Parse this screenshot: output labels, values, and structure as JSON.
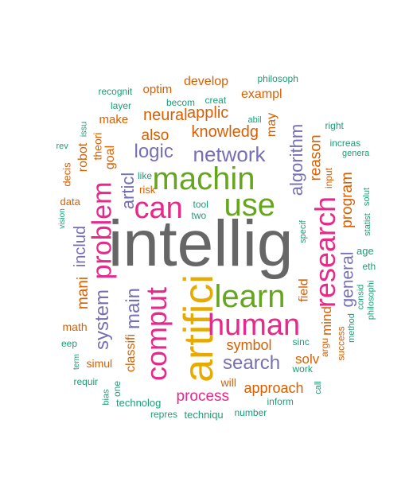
{
  "palette": {
    "teal": "#1b9e77",
    "orange": "#d95f02",
    "purple": "#7570b3",
    "pink": "#e7298a",
    "green": "#66a61e",
    "gold": "#e6ab02",
    "brown": "#a6761d",
    "gray": "#666666"
  },
  "words": [
    {
      "text": "intellig",
      "color": "gray"
    },
    {
      "text": "artifici",
      "color": "gold"
    },
    {
      "text": "machin",
      "color": "green"
    },
    {
      "text": "use",
      "color": "green"
    },
    {
      "text": "learn",
      "color": "green"
    },
    {
      "text": "human",
      "color": "pink"
    },
    {
      "text": "comput",
      "color": "pink"
    },
    {
      "text": "research",
      "color": "pink"
    },
    {
      "text": "can",
      "color": "pink"
    },
    {
      "text": "problem",
      "color": "pink"
    },
    {
      "text": "network",
      "color": "purple"
    },
    {
      "text": "algorithm",
      "color": "purple"
    },
    {
      "text": "search",
      "color": "purple"
    },
    {
      "text": "logic",
      "color": "purple"
    },
    {
      "text": "system",
      "color": "purple"
    },
    {
      "text": "main",
      "color": "purple"
    },
    {
      "text": "articl",
      "color": "purple"
    },
    {
      "text": "general",
      "color": "purple"
    },
    {
      "text": "includ",
      "color": "purple"
    },
    {
      "text": "knowledg",
      "color": "orange"
    },
    {
      "text": "applic",
      "color": "orange"
    },
    {
      "text": "neural",
      "color": "orange"
    },
    {
      "text": "also",
      "color": "orange"
    },
    {
      "text": "reason",
      "color": "orange"
    },
    {
      "text": "program",
      "color": "orange"
    },
    {
      "text": "process",
      "color": "pink"
    },
    {
      "text": "approach",
      "color": "orange"
    },
    {
      "text": "symbol",
      "color": "orange"
    },
    {
      "text": "classifi",
      "color": "orange"
    },
    {
      "text": "mani",
      "color": "orange"
    },
    {
      "text": "solv",
      "color": "orange"
    },
    {
      "text": "mind",
      "color": "orange"
    },
    {
      "text": "exampl",
      "color": "orange"
    },
    {
      "text": "develop",
      "color": "orange"
    },
    {
      "text": "goal",
      "color": "orange"
    },
    {
      "text": "may",
      "color": "orange"
    },
    {
      "text": "field",
      "color": "orange"
    },
    {
      "text": "robot",
      "color": "orange"
    },
    {
      "text": "make",
      "color": "orange"
    },
    {
      "text": "optim",
      "color": "orange"
    },
    {
      "text": "theori",
      "color": "orange"
    },
    {
      "text": "data",
      "color": "orange"
    },
    {
      "text": "decis",
      "color": "orange"
    },
    {
      "text": "simul",
      "color": "orange"
    },
    {
      "text": "math",
      "color": "orange"
    },
    {
      "text": "will",
      "color": "orange"
    },
    {
      "text": "risk",
      "color": "orange"
    },
    {
      "text": "input",
      "color": "orange"
    },
    {
      "text": "success",
      "color": "orange"
    },
    {
      "text": "argu",
      "color": "orange"
    },
    {
      "text": "one",
      "color": "teal"
    },
    {
      "text": "recognit",
      "color": "teal"
    },
    {
      "text": "philosoph",
      "color": "teal"
    },
    {
      "text": "layer",
      "color": "teal"
    },
    {
      "text": "becom",
      "color": "teal"
    },
    {
      "text": "creat",
      "color": "teal"
    },
    {
      "text": "abil",
      "color": "teal"
    },
    {
      "text": "right",
      "color": "teal"
    },
    {
      "text": "increas",
      "color": "teal"
    },
    {
      "text": "genera",
      "color": "teal"
    },
    {
      "text": "solut",
      "color": "teal"
    },
    {
      "text": "statist",
      "color": "teal"
    },
    {
      "text": "age",
      "color": "teal"
    },
    {
      "text": "eth",
      "color": "teal"
    },
    {
      "text": "consid",
      "color": "teal"
    },
    {
      "text": "philosophi",
      "color": "teal"
    },
    {
      "text": "method",
      "color": "teal"
    },
    {
      "text": "specif",
      "color": "teal"
    },
    {
      "text": "like",
      "color": "teal"
    },
    {
      "text": "tool",
      "color": "teal"
    },
    {
      "text": "two",
      "color": "teal"
    },
    {
      "text": "issu",
      "color": "teal"
    },
    {
      "text": "rev",
      "color": "teal"
    },
    {
      "text": "vision",
      "color": "teal"
    },
    {
      "text": "eep",
      "color": "teal"
    },
    {
      "text": "term",
      "color": "teal"
    },
    {
      "text": "requir",
      "color": "teal"
    },
    {
      "text": "bias",
      "color": "teal"
    },
    {
      "text": "technolog",
      "color": "teal"
    },
    {
      "text": "repres",
      "color": "teal"
    },
    {
      "text": "techniqu",
      "color": "teal"
    },
    {
      "text": "number",
      "color": "teal"
    },
    {
      "text": "inform",
      "color": "teal"
    },
    {
      "text": "call",
      "color": "teal"
    },
    {
      "text": "work",
      "color": "teal"
    },
    {
      "text": "sinc",
      "color": "teal"
    }
  ]
}
